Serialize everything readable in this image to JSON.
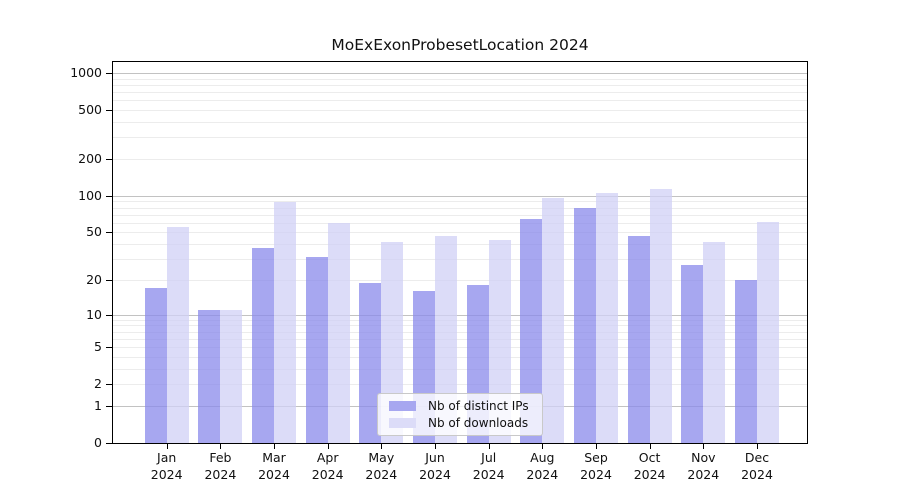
{
  "title": "MoExExonProbesetLocation 2024",
  "chart_data": {
    "type": "bar",
    "title": "MoExExonProbesetLocation 2024",
    "categories": [
      "Jan 2024",
      "Feb 2024",
      "Mar 2024",
      "Apr 2024",
      "May 2024",
      "Jun 2024",
      "Jul 2024",
      "Aug 2024",
      "Sep 2024",
      "Oct 2024",
      "Nov 2024",
      "Dec 2024"
    ],
    "month_labels": [
      "Jan",
      "Feb",
      "Mar",
      "Apr",
      "May",
      "Jun",
      "Jul",
      "Aug",
      "Sep",
      "Oct",
      "Nov",
      "Dec"
    ],
    "year_label": "2024",
    "series": [
      {
        "name": "Nb of distinct IPs",
        "values": [
          17,
          11,
          37,
          31,
          19,
          16,
          18,
          64,
          79,
          47,
          27,
          20
        ]
      },
      {
        "name": "Nb of downloads",
        "values": [
          55,
          11,
          89,
          60,
          42,
          47,
          43,
          97,
          106,
          114,
          42,
          61
        ]
      }
    ],
    "y_scale": "log1p",
    "y_ticks": [
      0,
      1,
      2,
      5,
      10,
      20,
      50,
      100,
      200,
      500,
      1000
    ],
    "y_major_gridlines": [
      1,
      10,
      100,
      1000
    ],
    "ylim": [
      0,
      1250
    ],
    "grid": true,
    "legend_position": "inside lower-center"
  },
  "legend": {
    "items": [
      {
        "label": "Nb of distinct IPs",
        "swatch": "#a7a7f0"
      },
      {
        "label": "Nb of downloads",
        "swatch": "#dcdcf8"
      }
    ]
  },
  "colors": {
    "bar_ips": "rgba(138,138,235,0.75)",
    "bar_downloads": "rgba(208,208,246,0.75)",
    "legend_swatch_ips": "#a7a7f0",
    "legend_swatch_downloads": "#dcdcf8",
    "grid_major": "#c2c2c2",
    "grid_minor": "#ececec",
    "spine": "#000000",
    "text": "#111111"
  }
}
